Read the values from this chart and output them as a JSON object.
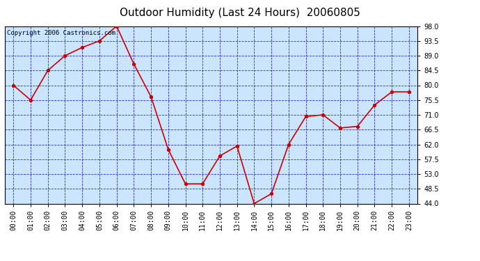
{
  "title": "Outdoor Humidity (Last 24 Hours)  20060805",
  "copyright_text": "Copyright 2006 Castronics.com",
  "hours": [
    "00:00",
    "01:00",
    "02:00",
    "03:00",
    "04:00",
    "05:00",
    "06:00",
    "07:00",
    "08:00",
    "09:00",
    "10:00",
    "11:00",
    "12:00",
    "13:00",
    "14:00",
    "15:00",
    "16:00",
    "17:00",
    "18:00",
    "19:00",
    "20:00",
    "21:00",
    "22:00",
    "23:00"
  ],
  "values": [
    80.0,
    75.5,
    84.5,
    89.0,
    91.5,
    93.5,
    98.0,
    86.5,
    76.5,
    60.5,
    50.0,
    50.0,
    58.5,
    61.5,
    44.0,
    47.0,
    62.0,
    70.5,
    71.0,
    67.0,
    67.5,
    74.0,
    78.0,
    78.0
  ],
  "ylim": [
    44.0,
    98.0
  ],
  "yticks": [
    44.0,
    48.5,
    53.0,
    57.5,
    62.0,
    66.5,
    71.0,
    75.5,
    80.0,
    84.5,
    89.0,
    93.5,
    98.0
  ],
  "line_color": "#cc0000",
  "marker_color": "#cc0000",
  "plot_bg_color": "#cce5ff",
  "outer_bg_color": "#ffffff",
  "grid_color": "#0000bb",
  "title_color": "#000000",
  "title_fontsize": 11,
  "copyright_fontsize": 6.5,
  "tick_fontsize": 7,
  "tick_label_color": "#000000"
}
